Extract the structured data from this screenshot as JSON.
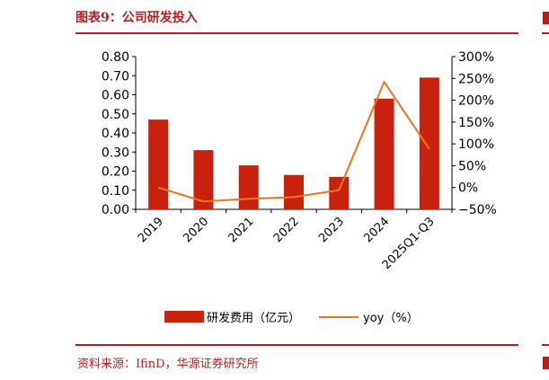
{
  "figure": {
    "title": "图表9：公司研发投入",
    "source": "资料来源：IfinD，华源证券研究所"
  },
  "chart_data": {
    "type": "bar",
    "categories": [
      "2019",
      "2020",
      "2021",
      "2022",
      "2023",
      "2024",
      "2025Q1-Q3"
    ],
    "series": [
      {
        "name": "研发费用（亿元）",
        "type": "bar",
        "axis": "left",
        "color": "#c8220f",
        "values": [
          0.47,
          0.31,
          0.23,
          0.18,
          0.17,
          0.58,
          0.69
        ]
      },
      {
        "name": "yoy（%）",
        "type": "line",
        "axis": "right",
        "color": "#f0721e",
        "values": [
          0,
          -32,
          -26,
          -22,
          -6,
          242,
          88
        ]
      }
    ],
    "yaxis_left": {
      "min": 0,
      "max": 0.8,
      "ticks": [
        "0.00",
        "0.10",
        "0.20",
        "0.30",
        "0.40",
        "0.50",
        "0.60",
        "0.70",
        "0.80"
      ]
    },
    "yaxis_right": {
      "min": -50,
      "max": 300,
      "ticks": [
        "−50%",
        "0%",
        "50%",
        "100%",
        "150%",
        "200%",
        "250%",
        "300%"
      ]
    },
    "legend": {
      "position": "bottom",
      "items": [
        "研发费用（亿元）",
        "yoy（%）"
      ]
    },
    "grid": false
  }
}
